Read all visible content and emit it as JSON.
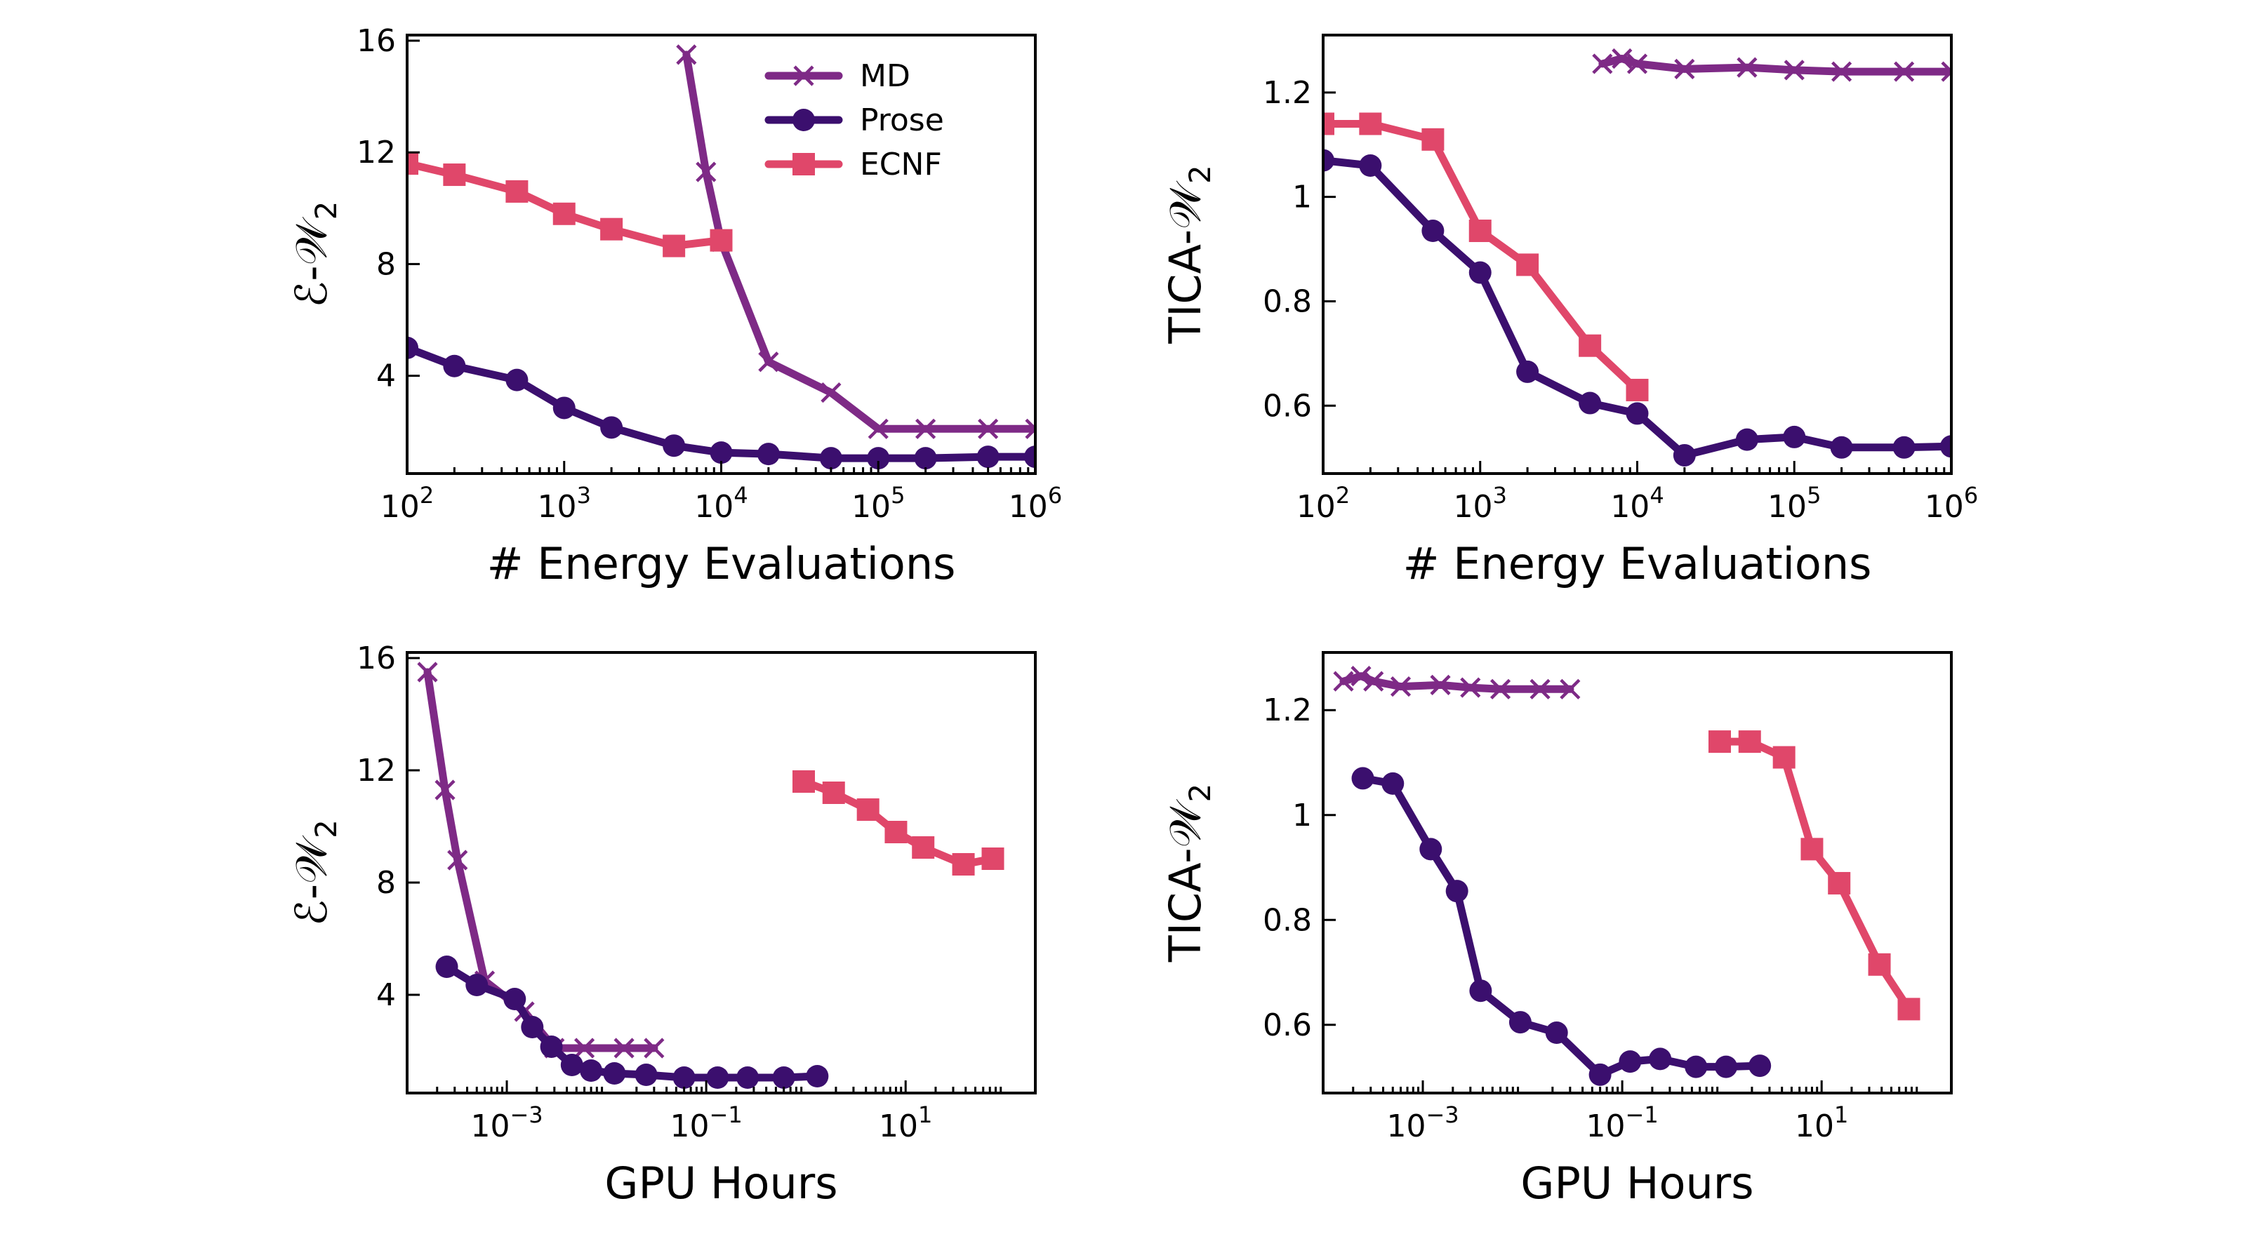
{
  "colors": {
    "MD": "#7e2a86",
    "Prose": "#3b0f6e",
    "ECNF": "#e0476a"
  },
  "legend": [
    "MD",
    "Prose",
    "ECNF"
  ],
  "chart_data": [
    {
      "type": "line",
      "xlabel": "# Energy Evaluations",
      "ylabel": "ℰ-𝒲",
      "ylabel_sub": "2",
      "xscale": "log",
      "xlim": [
        100,
        1000000
      ],
      "ylim": [
        0.5,
        16.2
      ],
      "xticks": [
        2,
        3,
        4,
        5,
        6
      ],
      "yticks": [
        4,
        8,
        12,
        16
      ],
      "legend_position": "top-right",
      "series": [
        {
          "name": "MD",
          "marker": "x",
          "x": [
            6000,
            8000,
            10000,
            20000,
            50000,
            100000,
            200000,
            500000,
            1000000
          ],
          "y": [
            15.5,
            11.3,
            8.8,
            4.5,
            3.4,
            2.1,
            2.1,
            2.1,
            2.1
          ]
        },
        {
          "name": "Prose",
          "marker": "circle",
          "x": [
            100,
            200,
            500,
            1000,
            2000,
            5000,
            10000,
            20000,
            50000,
            100000,
            200000,
            500000,
            1000000
          ],
          "y": [
            5.0,
            4.35,
            3.85,
            2.85,
            2.15,
            1.5,
            1.25,
            1.2,
            1.05,
            1.05,
            1.05,
            1.1,
            1.1
          ]
        },
        {
          "name": "ECNF",
          "marker": "square",
          "x": [
            100,
            200,
            500,
            1000,
            2000,
            5000,
            10000
          ],
          "y": [
            11.6,
            11.2,
            10.6,
            9.8,
            9.25,
            8.65,
            8.85
          ]
        }
      ]
    },
    {
      "type": "line",
      "xlabel": "# Energy Evaluations",
      "ylabel": "TICA-𝒲",
      "ylabel_sub": "2",
      "xscale": "log",
      "xlim": [
        100,
        1000000
      ],
      "ylim": [
        0.47,
        1.31
      ],
      "xticks": [
        2,
        3,
        4,
        5,
        6
      ],
      "yticks": [
        0.6,
        0.8,
        1.0,
        1.2
      ],
      "series": [
        {
          "name": "MD",
          "marker": "x",
          "x": [
            6000,
            8000,
            10000,
            20000,
            50000,
            100000,
            200000,
            500000,
            1000000
          ],
          "y": [
            1.255,
            1.265,
            1.255,
            1.245,
            1.248,
            1.243,
            1.24,
            1.24,
            1.24
          ]
        },
        {
          "name": "Prose",
          "marker": "circle",
          "x": [
            100,
            200,
            500,
            1000,
            2000,
            5000,
            10000,
            20000,
            50000,
            100000,
            200000,
            500000,
            1000000
          ],
          "y": [
            1.07,
            1.06,
            0.935,
            0.855,
            0.665,
            0.605,
            0.585,
            0.505,
            0.535,
            0.54,
            0.52,
            0.52,
            0.522
          ]
        },
        {
          "name": "ECNF",
          "marker": "square",
          "x": [
            100,
            200,
            500,
            1000,
            2000,
            5000,
            10000
          ],
          "y": [
            1.14,
            1.14,
            1.11,
            0.935,
            0.87,
            0.715,
            0.63
          ]
        }
      ]
    },
    {
      "type": "line",
      "xlabel": "GPU Hours",
      "ylabel": "ℰ-𝒲",
      "ylabel_sub": "2",
      "xscale": "log",
      "xlim": [
        0.0001,
        200
      ],
      "ylim": [
        0.5,
        16.2
      ],
      "xticks": [
        -3,
        -1,
        1
      ],
      "yticks": [
        4,
        8,
        12,
        16
      ],
      "series": [
        {
          "name": "MD",
          "marker": "x",
          "x": [
            0.00016,
            0.00024,
            0.00032,
            0.0006,
            0.0015,
            0.003,
            0.006,
            0.015,
            0.03
          ],
          "y": [
            15.5,
            11.3,
            8.8,
            4.5,
            3.4,
            2.1,
            2.1,
            2.1,
            2.1
          ]
        },
        {
          "name": "Prose",
          "marker": "circle",
          "x": [
            0.00025,
            0.0005,
            0.0012,
            0.0018,
            0.0028,
            0.0045,
            0.007,
            0.012,
            0.025,
            0.06,
            0.13,
            0.26,
            0.6,
            1.3
          ],
          "y": [
            5.0,
            4.35,
            3.85,
            2.85,
            2.15,
            1.5,
            1.3,
            1.2,
            1.15,
            1.05,
            1.05,
            1.05,
            1.05,
            1.1
          ]
        },
        {
          "name": "ECNF",
          "marker": "square",
          "x": [
            0.95,
            1.9,
            4.2,
            8.0,
            15.0,
            38.0,
            75.0
          ],
          "y": [
            11.6,
            11.2,
            10.6,
            9.8,
            9.25,
            8.65,
            8.85
          ]
        }
      ]
    },
    {
      "type": "line",
      "xlabel": "GPU Hours",
      "ylabel": "TICA-𝒲",
      "ylabel_sub": "2",
      "xscale": "log",
      "xlim": [
        0.0001,
        200
      ],
      "ylim": [
        0.47,
        1.31
      ],
      "xticks": [
        -3,
        -1,
        1
      ],
      "yticks": [
        0.6,
        0.8,
        1.0,
        1.2
      ],
      "series": [
        {
          "name": "MD",
          "marker": "x",
          "x": [
            0.00016,
            0.00024,
            0.00032,
            0.0006,
            0.0015,
            0.003,
            0.006,
            0.015,
            0.03
          ],
          "y": [
            1.255,
            1.265,
            1.255,
            1.245,
            1.248,
            1.243,
            1.24,
            1.24,
            1.24
          ]
        },
        {
          "name": "Prose",
          "marker": "circle",
          "x": [
            0.00025,
            0.0005,
            0.0012,
            0.0022,
            0.0038,
            0.0095,
            0.022,
            0.06,
            0.12,
            0.24,
            0.55,
            1.1,
            2.4
          ],
          "y": [
            1.07,
            1.06,
            0.935,
            0.855,
            0.665,
            0.605,
            0.585,
            0.505,
            0.53,
            0.535,
            0.52,
            0.52,
            0.522
          ]
        },
        {
          "name": "ECNF",
          "marker": "square",
          "x": [
            0.95,
            1.9,
            4.2,
            8.0,
            15.0,
            38.0,
            75.0
          ],
          "y": [
            1.14,
            1.14,
            1.11,
            0.935,
            0.87,
            0.715,
            0.63
          ]
        }
      ]
    }
  ]
}
